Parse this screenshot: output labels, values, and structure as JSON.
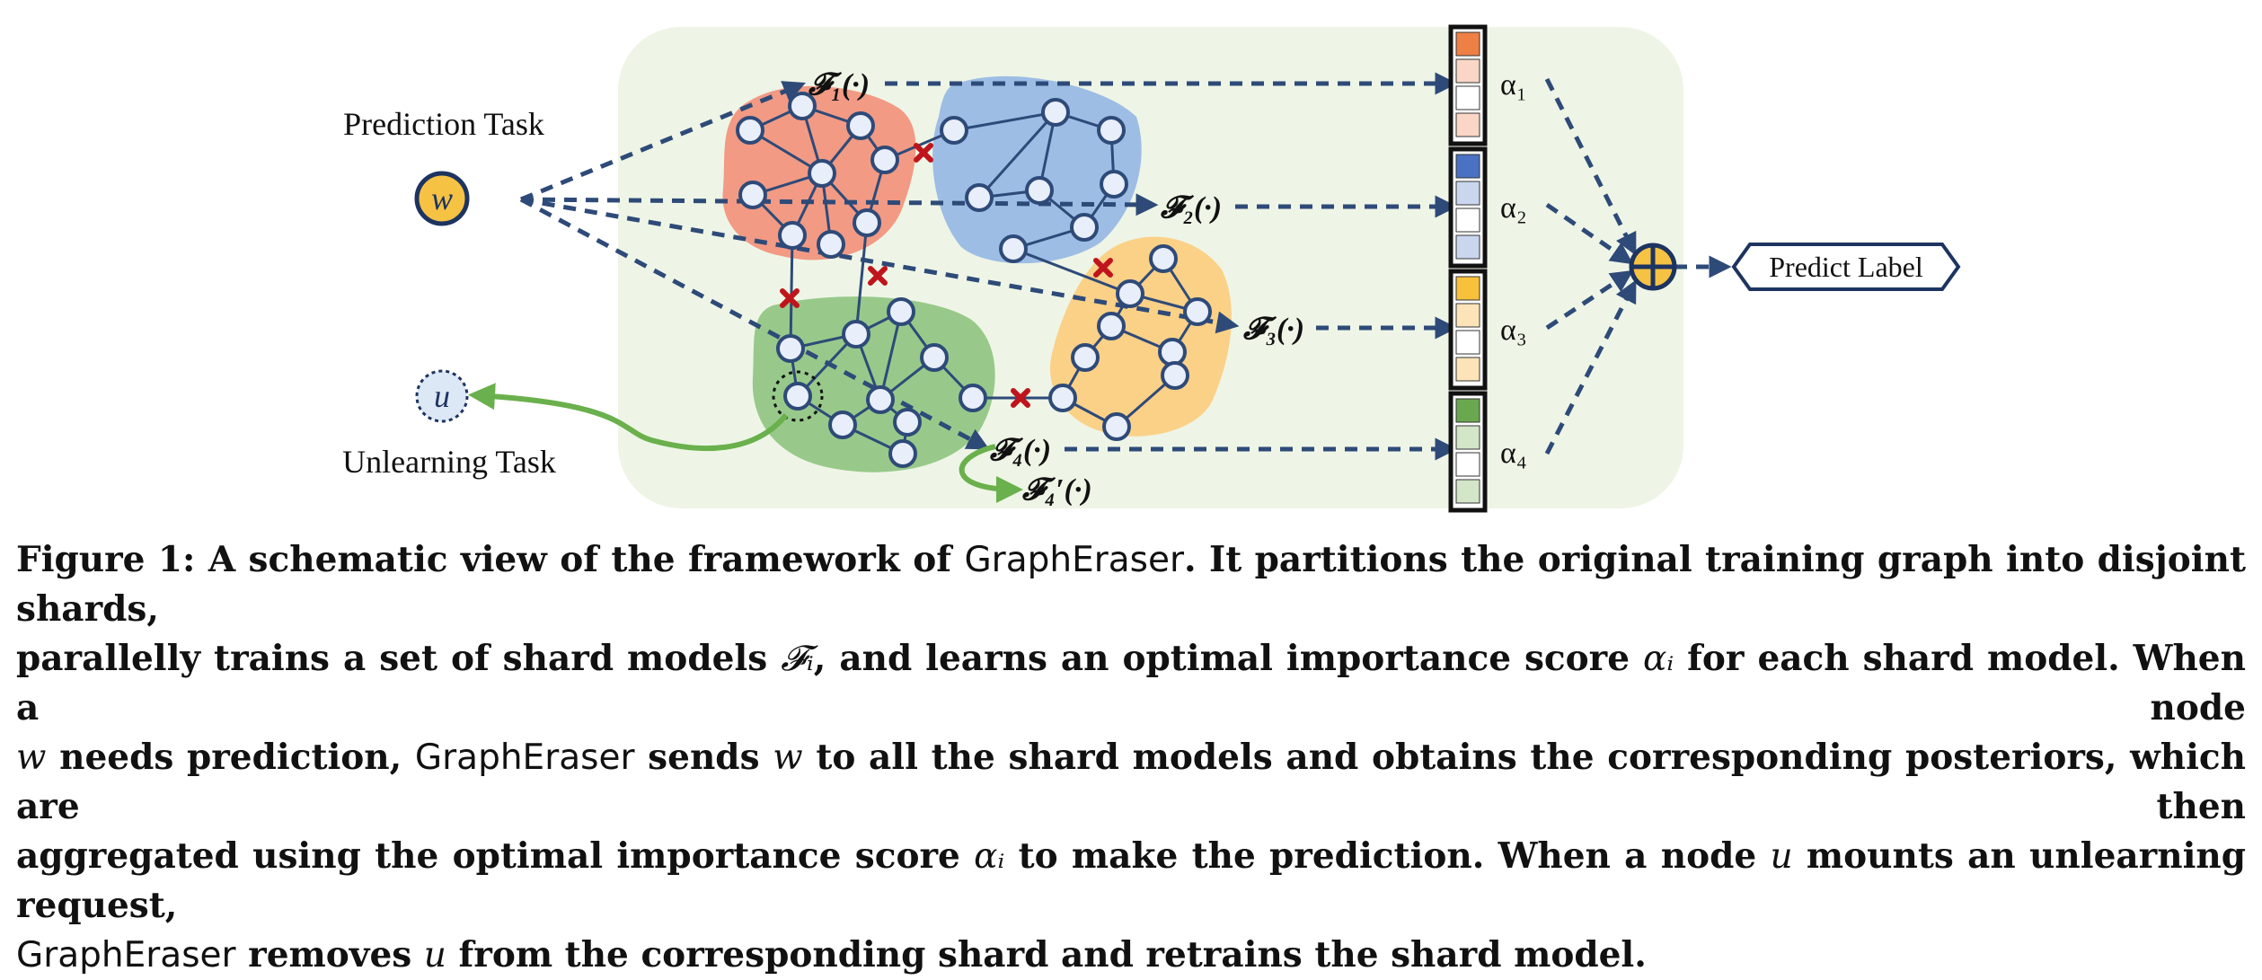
{
  "figure": {
    "prediction_task_label": "Prediction Task",
    "unlearning_task_label": "Unlearning Task",
    "node_w": "w",
    "node_u": "u",
    "shard_models": [
      "𝓕₁(·)",
      "𝓕₂(·)",
      "𝓕₃(·)",
      "𝓕₄(·)"
    ],
    "retrained_model": "𝓕₄′(·)",
    "alphas": [
      "α₁",
      "α₂",
      "α₃",
      "α₄"
    ],
    "aggregator_symbol": "⊕",
    "predict_label": "Predict Label",
    "colors": {
      "background_panel": "#eef5e6",
      "shard_red": "#f29a84",
      "shard_blue": "#9dbde5",
      "shard_yellow": "#fbd187",
      "shard_green": "#98c98a",
      "arrow_dashed": "#2e4a78",
      "arrow_green": "#6ab04c",
      "cut_mark": "#c0141c",
      "node_fill": "#e8eefa",
      "node_stroke": "#2e4a78",
      "aggregator_fill": "#f5c244",
      "bar_orange": "#ee8046",
      "bar_blue": "#4a72c4",
      "bar_yellow": "#f7c13b",
      "bar_green": "#6aa84f"
    }
  },
  "caption": {
    "lines": [
      [
        {
          "t": "Figure 1: A schematic view of the framework of ",
          "s": "b"
        },
        {
          "t": "GraphEraser",
          "s": "sans"
        },
        {
          "t": ". It partitions the original training graph into disjoint shards,",
          "s": "b"
        }
      ],
      [
        {
          "t": "parallelly trains a set of shard models ",
          "s": "b"
        },
        {
          "t": "𝓕ᵢ",
          "s": "scr"
        },
        {
          "t": ", and learns an optimal importance score ",
          "s": "b"
        },
        {
          "t": "αᵢ",
          "s": "it"
        },
        {
          "t": " for each shard model. When a node",
          "s": "b"
        }
      ],
      [
        {
          "t": "w",
          "s": "it"
        },
        {
          "t": " needs prediction, ",
          "s": "b"
        },
        {
          "t": "GraphEraser",
          "s": "sans"
        },
        {
          "t": " sends ",
          "s": "b"
        },
        {
          "t": "w",
          "s": "it"
        },
        {
          "t": " to all the shard models and obtains the corresponding posteriors, which are then",
          "s": "b"
        }
      ],
      [
        {
          "t": "aggregated using the optimal importance score ",
          "s": "b"
        },
        {
          "t": "αᵢ",
          "s": "it"
        },
        {
          "t": " to make the prediction. When a node ",
          "s": "b"
        },
        {
          "t": "u",
          "s": "it"
        },
        {
          "t": " mounts an unlearning request,",
          "s": "b"
        }
      ],
      [
        {
          "t": "GraphEraser",
          "s": "sans"
        },
        {
          "t": " removes ",
          "s": "b"
        },
        {
          "t": "u",
          "s": "it"
        },
        {
          "t": " from the corresponding shard and retrains the shard model.",
          "s": "b"
        }
      ]
    ]
  }
}
